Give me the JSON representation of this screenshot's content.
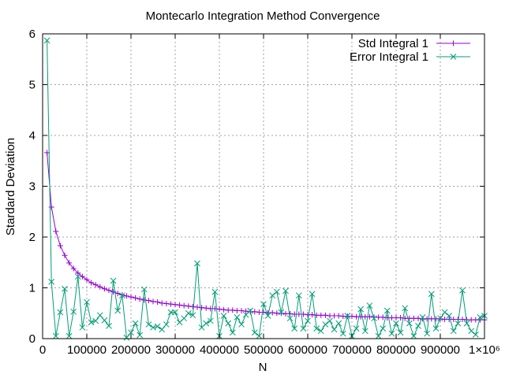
{
  "chart_data": {
    "type": "line",
    "title": "Montecarlo Integration Method Convergence",
    "xlabel": "N",
    "ylabel": "Stardard Deviation",
    "xlim": [
      0,
      1000000
    ],
    "ylim": [
      0,
      6
    ],
    "x_ticks": [
      0,
      100000,
      200000,
      300000,
      400000,
      500000,
      600000,
      700000,
      800000,
      900000,
      1000000
    ],
    "x_tick_labels": [
      "0",
      "100000",
      "200000",
      "300000",
      "400000",
      "500000",
      "600000",
      "700000",
      "800000",
      "900000",
      "1×10⁶"
    ],
    "y_ticks": [
      0,
      1,
      2,
      3,
      4,
      5,
      6
    ],
    "y_tick_labels": [
      "0",
      "1",
      "2",
      "3",
      "4",
      "5",
      "6"
    ],
    "grid": true,
    "legend_position": "top-right",
    "series": [
      {
        "name": "Std Integral 1",
        "color": "#9400d3",
        "marker": "plus",
        "x": [
          10000,
          20000,
          30000,
          40000,
          50000,
          60000,
          70000,
          80000,
          90000,
          100000,
          110000,
          120000,
          130000,
          140000,
          150000,
          160000,
          170000,
          180000,
          190000,
          200000,
          210000,
          220000,
          230000,
          240000,
          250000,
          260000,
          270000,
          280000,
          290000,
          300000,
          310000,
          320000,
          330000,
          340000,
          350000,
          360000,
          370000,
          380000,
          390000,
          400000,
          410000,
          420000,
          430000,
          440000,
          450000,
          460000,
          470000,
          480000,
          490000,
          500000,
          510000,
          520000,
          530000,
          540000,
          550000,
          560000,
          570000,
          580000,
          590000,
          600000,
          610000,
          620000,
          630000,
          640000,
          650000,
          660000,
          670000,
          680000,
          690000,
          700000,
          710000,
          720000,
          730000,
          740000,
          750000,
          760000,
          770000,
          780000,
          790000,
          800000,
          810000,
          820000,
          830000,
          840000,
          850000,
          860000,
          870000,
          880000,
          890000,
          900000,
          910000,
          920000,
          930000,
          940000,
          950000,
          960000,
          970000,
          980000,
          990000,
          1000000
        ],
        "y": [
          3.66,
          2.59,
          2.11,
          1.83,
          1.64,
          1.49,
          1.38,
          1.29,
          1.22,
          1.16,
          1.1,
          1.06,
          1.02,
          0.98,
          0.95,
          0.92,
          0.89,
          0.86,
          0.84,
          0.82,
          0.8,
          0.78,
          0.76,
          0.75,
          0.73,
          0.72,
          0.7,
          0.69,
          0.68,
          0.67,
          0.66,
          0.65,
          0.64,
          0.63,
          0.62,
          0.61,
          0.6,
          0.59,
          0.59,
          0.58,
          0.57,
          0.56,
          0.56,
          0.55,
          0.55,
          0.54,
          0.53,
          0.53,
          0.52,
          0.52,
          0.51,
          0.51,
          0.5,
          0.5,
          0.49,
          0.49,
          0.48,
          0.48,
          0.48,
          0.47,
          0.47,
          0.46,
          0.46,
          0.46,
          0.45,
          0.45,
          0.45,
          0.44,
          0.44,
          0.44,
          0.43,
          0.43,
          0.43,
          0.43,
          0.42,
          0.42,
          0.42,
          0.41,
          0.41,
          0.41,
          0.41,
          0.4,
          0.4,
          0.4,
          0.4,
          0.39,
          0.39,
          0.39,
          0.39,
          0.39,
          0.38,
          0.38,
          0.38,
          0.38,
          0.38,
          0.37,
          0.37,
          0.37,
          0.37,
          0.37
        ]
      },
      {
        "name": "Error Integral 1",
        "color": "#009e73",
        "marker": "cross",
        "x": [
          10000,
          20000,
          30000,
          40000,
          50000,
          60000,
          70000,
          80000,
          90000,
          100000,
          110000,
          120000,
          130000,
          140000,
          150000,
          160000,
          170000,
          180000,
          190000,
          200000,
          210000,
          220000,
          230000,
          240000,
          250000,
          260000,
          270000,
          280000,
          290000,
          300000,
          310000,
          320000,
          330000,
          340000,
          350000,
          360000,
          370000,
          380000,
          390000,
          400000,
          410000,
          420000,
          430000,
          440000,
          450000,
          460000,
          470000,
          480000,
          490000,
          500000,
          510000,
          520000,
          530000,
          540000,
          550000,
          560000,
          570000,
          580000,
          590000,
          600000,
          610000,
          620000,
          630000,
          640000,
          650000,
          660000,
          670000,
          680000,
          690000,
          700000,
          710000,
          720000,
          730000,
          740000,
          750000,
          760000,
          770000,
          780000,
          790000,
          800000,
          810000,
          820000,
          830000,
          840000,
          850000,
          860000,
          870000,
          880000,
          890000,
          900000,
          910000,
          920000,
          930000,
          940000,
          950000,
          960000,
          970000,
          980000,
          990000,
          1000000
        ],
        "y": [
          5.87,
          1.12,
          0.05,
          0.52,
          0.98,
          0.05,
          0.53,
          1.22,
          0.22,
          0.72,
          0.32,
          0.35,
          0.46,
          0.36,
          0.25,
          1.14,
          0.55,
          0.85,
          0.02,
          0.12,
          0.3,
          0.07,
          0.97,
          0.28,
          0.22,
          0.24,
          0.18,
          0.28,
          0.52,
          0.52,
          0.32,
          0.4,
          0.5,
          0.46,
          1.48,
          0.22,
          0.3,
          0.35,
          0.92,
          0.05,
          0.45,
          0.3,
          0.12,
          0.42,
          0.28,
          0.47,
          0.55,
          0.12,
          0.05,
          0.68,
          0.45,
          0.85,
          0.92,
          0.52,
          0.94,
          0.4,
          0.2,
          0.85,
          0.2,
          0.35,
          0.88,
          0.2,
          0.15,
          0.28,
          0.35,
          0.18,
          0.3,
          0.1,
          0.45,
          0.05,
          0.2,
          0.58,
          0.15,
          0.65,
          0.4,
          0.05,
          0.2,
          0.55,
          0.1,
          0.3,
          0.12,
          0.6,
          0.3,
          0.05,
          0.25,
          0.42,
          0.1,
          0.88,
          0.2,
          0.4,
          0.52,
          0.45,
          0.15,
          0.3,
          0.95,
          0.3,
          0.15,
          0.08,
          0.42,
          0.45
        ]
      }
    ]
  }
}
